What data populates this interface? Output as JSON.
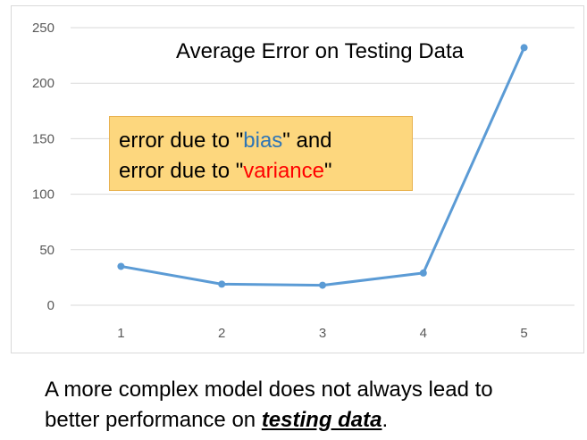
{
  "chart_data": {
    "type": "line",
    "title": "Average Error on Testing Data",
    "categories": [
      "1",
      "2",
      "3",
      "4",
      "5"
    ],
    "values": [
      35,
      19,
      18,
      29,
      232
    ],
    "ylim": [
      0,
      250
    ],
    "yticks": [
      0,
      50,
      100,
      150,
      200,
      250
    ],
    "grid": true,
    "line_color": "#5b9bd5",
    "annotation": {
      "line1_prefix": "error due to \"",
      "line1_word": "bias",
      "line1_suffix": "\" and",
      "line2_prefix": "error due to \"",
      "line2_word": "variance",
      "line2_suffix": "\"",
      "bias_color": "#2e75b6",
      "variance_color": "#ff0000",
      "background": "#fdd77e"
    }
  },
  "caption": {
    "line1": "A more complex model does not always lead to",
    "line2_prefix": "better performance on ",
    "line2_emphasis": "testing data",
    "line2_suffix": "."
  }
}
